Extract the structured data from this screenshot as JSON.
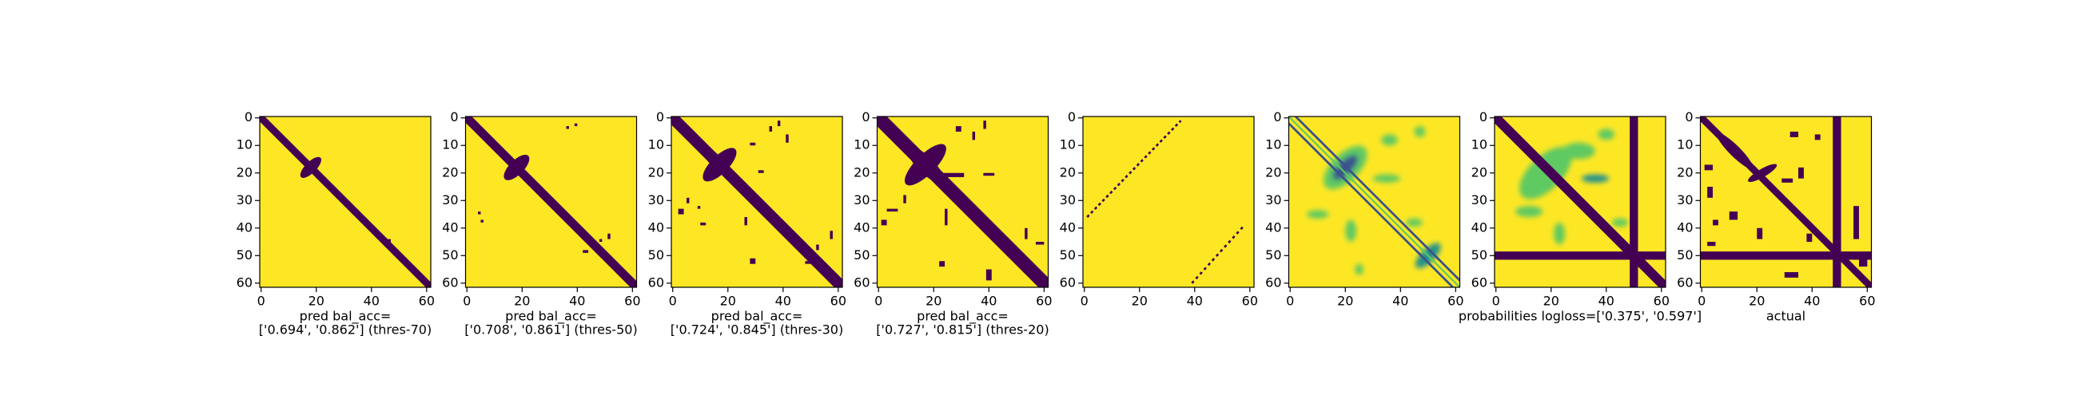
{
  "chart_data": [
    {
      "type": "heatmap",
      "caption": [
        "pred bal_acc=",
        "['0.694', '0.862'] (thres-70)"
      ],
      "xlim": [
        -0.5,
        61.5
      ],
      "ylim": [
        61.5,
        -0.5
      ],
      "xticks": [
        0,
        20,
        40,
        60
      ],
      "yticks": [
        0,
        10,
        20,
        30,
        40,
        50,
        60
      ]
    },
    {
      "type": "heatmap",
      "caption": [
        "pred bal_acc=",
        "['0.708', '0.861'] (thres-50)"
      ],
      "xlim": [
        -0.5,
        61.5
      ],
      "ylim": [
        61.5,
        -0.5
      ],
      "xticks": [
        0,
        20,
        40,
        60
      ],
      "yticks": [
        0,
        10,
        20,
        30,
        40,
        50,
        60
      ]
    },
    {
      "type": "heatmap",
      "caption": [
        "pred bal_acc=",
        "['0.724', '0.845'] (thres-30)"
      ],
      "xlim": [
        -0.5,
        61.5
      ],
      "ylim": [
        61.5,
        -0.5
      ],
      "xticks": [
        0,
        20,
        40,
        60
      ],
      "yticks": [
        0,
        10,
        20,
        30,
        40,
        50,
        60
      ]
    },
    {
      "type": "heatmap",
      "caption": [
        "pred bal_acc=",
        "['0.727', '0.815'] (thres-20)"
      ],
      "xlim": [
        -0.5,
        61.5
      ],
      "ylim": [
        61.5,
        -0.5
      ],
      "xticks": [
        0,
        20,
        40,
        60
      ],
      "yticks": [
        0,
        10,
        20,
        30,
        40,
        50,
        60
      ]
    },
    {
      "type": "heatmap",
      "xlim": [
        -0.5,
        61.5
      ],
      "ylim": [
        61.5,
        -0.5
      ],
      "xticks": [
        0,
        20,
        40,
        60
      ],
      "yticks": [
        0,
        10,
        20,
        30,
        40,
        50,
        60
      ]
    },
    {
      "type": "heatmap",
      "xlim": [
        -0.5,
        61.5
      ],
      "ylim": [
        61.5,
        -0.5
      ],
      "xticks": [
        0,
        20,
        40,
        60
      ],
      "yticks": [
        0,
        10,
        20,
        30,
        40,
        50,
        60
      ]
    },
    {
      "type": "heatmap",
      "caption": [
        "probabilities logloss=['0.375', '0.597']"
      ],
      "xlim": [
        -0.5,
        61.5
      ],
      "ylim": [
        61.5,
        -0.5
      ],
      "xticks": [
        0,
        20,
        40,
        60
      ],
      "yticks": [
        0,
        10,
        20,
        30,
        40,
        50,
        60
      ]
    },
    {
      "type": "heatmap",
      "caption": [
        "actual"
      ],
      "xlim": [
        -0.5,
        61.5
      ],
      "ylim": [
        61.5,
        -0.5
      ],
      "xticks": [
        0,
        20,
        40,
        60
      ],
      "yticks": [
        0,
        10,
        20,
        30,
        40,
        50,
        60
      ]
    }
  ]
}
